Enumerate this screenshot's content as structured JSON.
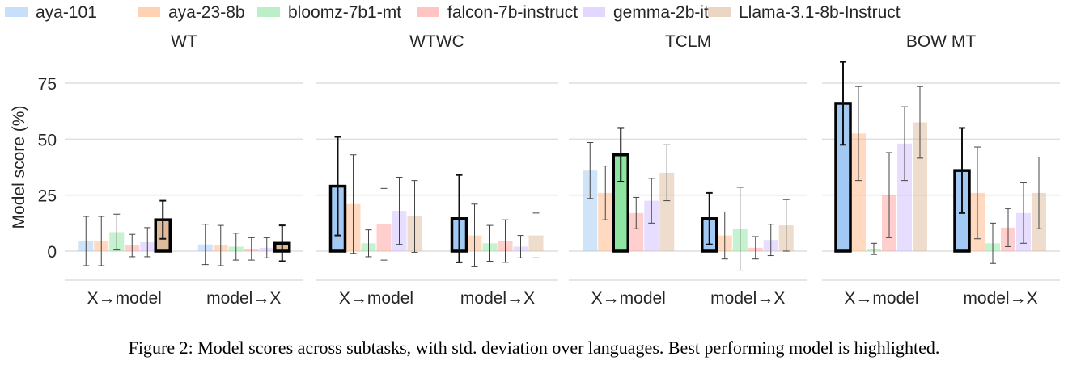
{
  "chart_data": {
    "type": "bar",
    "ylabel": "Model score (%)",
    "yticks": [
      0,
      25,
      50,
      75
    ],
    "ylim": [
      -13,
      88
    ],
    "grid": true,
    "legend_placement": "top",
    "categories": [
      "X→model",
      "model→X"
    ],
    "models": [
      "aya-101",
      "aya-23-8b",
      "bloomz-7b1-mt",
      "falcon-7b-instruct",
      "gemma-2b-it",
      "Llama-3.1-8b-Instruct"
    ],
    "colors": [
      "#a1c9f4",
      "#ffb482",
      "#8de5a1",
      "#ff9f9b",
      "#d0bbff",
      "#debb9b"
    ],
    "panels": [
      {
        "title": "WT",
        "values": [
          [
            4.5,
            4.5,
            8.5,
            2.5,
            4,
            14
          ],
          [
            3,
            2.5,
            2,
            1,
            1.5,
            3.5
          ]
        ],
        "errors": [
          [
            11,
            11,
            8,
            5,
            6.5,
            8.5
          ],
          [
            9,
            9,
            6,
            5,
            4.5,
            8
          ]
        ],
        "best": [
          5,
          5
        ]
      },
      {
        "title": "WTWC",
        "values": [
          [
            29,
            21,
            3.5,
            12,
            18,
            15.5
          ],
          [
            14.5,
            7,
            3.5,
            4.5,
            2,
            7
          ]
        ],
        "errors": [
          [
            22,
            22,
            6,
            16,
            15,
            16
          ],
          [
            19.5,
            14,
            8,
            9.5,
            5,
            10
          ]
        ],
        "best": [
          0,
          0
        ]
      },
      {
        "title": "TCLM",
        "values": [
          [
            36,
            26,
            43,
            17,
            22.5,
            35
          ],
          [
            14.5,
            7,
            10,
            1.5,
            5,
            11.5
          ]
        ],
        "errors": [
          [
            12.5,
            12,
            12,
            7,
            10,
            12.5
          ],
          [
            11.5,
            10.5,
            18.5,
            5,
            7,
            11.5
          ]
        ],
        "best": [
          2,
          0
        ]
      },
      {
        "title": "BOW MT",
        "values": [
          [
            66,
            52.5,
            1,
            25,
            48,
            57.5
          ],
          [
            36,
            26,
            3.5,
            10.5,
            17,
            26
          ]
        ],
        "errors": [
          [
            18.5,
            21,
            2.5,
            19,
            16.5,
            16
          ],
          [
            19,
            20.5,
            9,
            8.5,
            13.5,
            16
          ]
        ],
        "best": [
          0,
          0
        ]
      }
    ]
  },
  "caption": "Figure 2: Model scores across subtasks, with std. deviation over languages. Best performing model is highlighted."
}
